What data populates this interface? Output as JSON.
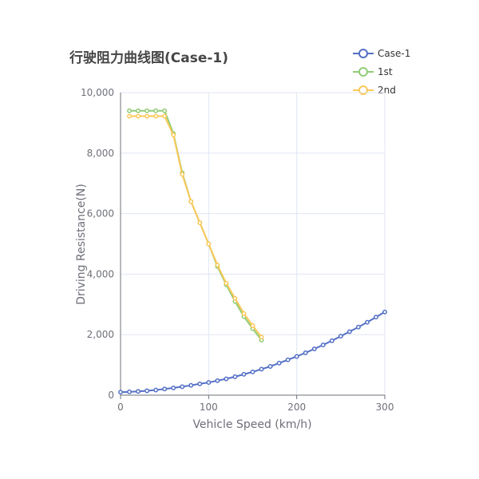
{
  "chart_data": {
    "type": "line",
    "title": "行驶阻力曲线图(Case-1)",
    "xlabel": "Vehicle Speed (km/h)",
    "ylabel": "Driving Resistance(N)",
    "xlim": [
      0,
      300
    ],
    "ylim": [
      0,
      10000
    ],
    "x_ticks": [
      "0",
      "100",
      "200",
      "300"
    ],
    "y_ticks": [
      "0",
      "2,000",
      "4,000",
      "6,000",
      "8,000",
      "10,000"
    ],
    "grid": true,
    "legend_position": "top-right",
    "series": [
      {
        "name": "Case-1",
        "color": "#5470c6",
        "x": [
          0,
          10,
          20,
          30,
          40,
          50,
          60,
          70,
          80,
          90,
          100,
          110,
          120,
          130,
          140,
          150,
          160,
          170,
          180,
          190,
          200,
          210,
          220,
          230,
          240,
          250,
          260,
          270,
          280,
          290,
          300
        ],
        "y": [
          100,
          110,
          125,
          145,
          170,
          205,
          240,
          280,
          325,
          375,
          420,
          480,
          540,
          610,
          690,
          770,
          860,
          950,
          1060,
          1170,
          1280,
          1400,
          1530,
          1660,
          1800,
          1950,
          2100,
          2250,
          2410,
          2580,
          2750
        ]
      },
      {
        "name": "1st",
        "color": "#91cc75",
        "x": [
          10,
          20,
          30,
          40,
          50,
          60,
          70,
          80,
          90,
          100,
          110,
          120,
          130,
          140,
          150,
          160
        ],
        "y": [
          9400,
          9400,
          9400,
          9400,
          9400,
          8650,
          7350,
          6400,
          5700,
          5000,
          4250,
          3650,
          3100,
          2600,
          2200,
          1820
        ]
      },
      {
        "name": "2nd",
        "color": "#fac858",
        "x": [
          10,
          20,
          30,
          40,
          50,
          60,
          70,
          80,
          90,
          100,
          110,
          120,
          130,
          140,
          150,
          160
        ],
        "y": [
          9220,
          9220,
          9220,
          9220,
          9220,
          8600,
          7300,
          6400,
          5700,
          5000,
          4300,
          3700,
          3200,
          2700,
          2300,
          1920
        ]
      }
    ]
  }
}
